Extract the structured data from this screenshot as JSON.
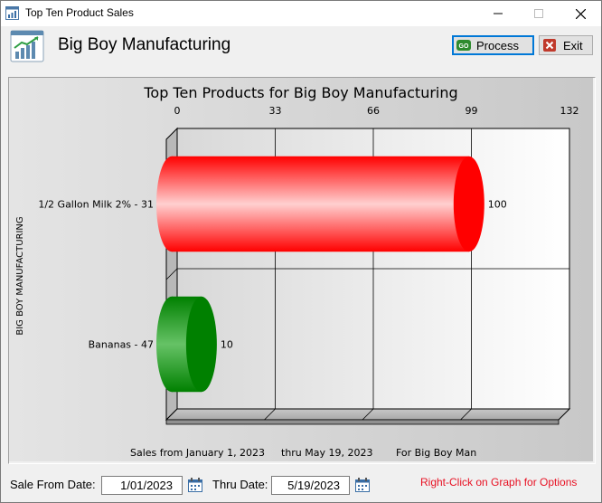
{
  "window": {
    "title": "Top Ten Product Sales",
    "minimize_icon": "minimize-icon",
    "maximize_icon": "maximize-icon",
    "close_icon": "close-icon"
  },
  "header": {
    "company_name": "Big Boy Manufacturing",
    "logo_icon": "chart-growth-icon",
    "process_label": "Process",
    "process_icon": "go-icon",
    "exit_label": "Exit",
    "exit_icon": "close-box-icon"
  },
  "chart_data": {
    "type": "bar",
    "orientation": "horizontal",
    "style": "3d-cylinder",
    "title": "Top Ten Products for Big Boy Manufacturing",
    "ylabel": "BIG BOY MANUFACTURING",
    "xlim": [
      0,
      132
    ],
    "x_ticks": [
      "0",
      "33",
      "66",
      "99",
      "132"
    ],
    "categories": [
      "1/2 Gallon Milk 2% - 31",
      "Bananas - 47"
    ],
    "values": [
      100,
      10
    ],
    "value_labels": [
      "100",
      "10"
    ],
    "colors": [
      "#ff0000",
      "#008000"
    ],
    "grid": true,
    "footer": {
      "from": "Sales from January  1, 2023",
      "thru": "thru May 19, 2023",
      "for": "For Big Boy Man"
    }
  },
  "filters": {
    "from_label": "Sale From Date:",
    "from_value": "1/01/2023",
    "thru_label": "Thru Date:",
    "thru_value": "5/19/2023",
    "calendar_icon": "calendar-icon"
  },
  "hint": "Right-Click on Graph for Options"
}
